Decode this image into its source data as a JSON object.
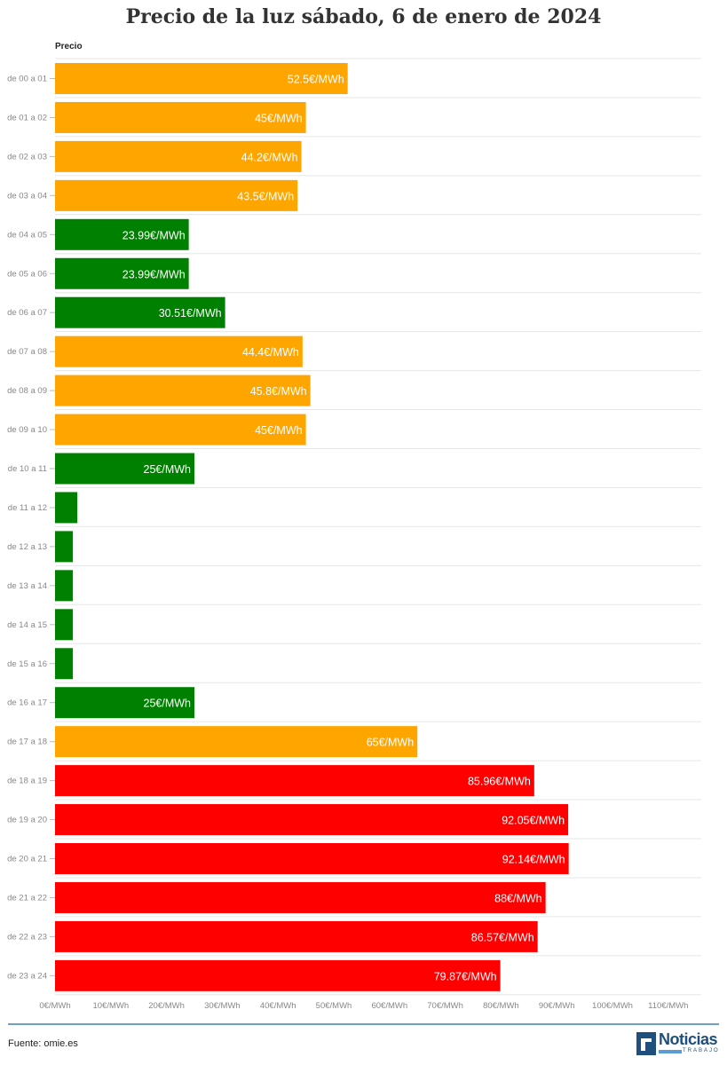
{
  "title": "Precio de la luz sábado, 6 de enero de 2024",
  "footer": {
    "source": "Fuente: omie.es",
    "logo_text": "Noticias",
    "logo_subtext": "TRABAJO"
  },
  "colors": {
    "orange": "#ffa500",
    "green": "#008000",
    "red": "#ff0000",
    "footer_line": "#6f9ec9",
    "logo": "#1f4f7f"
  },
  "chart_data": {
    "type": "bar",
    "orientation": "horizontal",
    "title": "Precio de la luz sábado, 6 de enero de 2024",
    "series_name": "Precio",
    "unit": "€/MWh",
    "xlim": [
      0,
      110
    ],
    "x_ticks": [
      "0€/MWh",
      "10€/MWh",
      "20€/MWh",
      "30€/MWh",
      "40€/MWh",
      "50€/MWh",
      "60€/MWh",
      "70€/MWh",
      "80€/MWh",
      "90€/MWh",
      "100€/MWh",
      "110€/MWh"
    ],
    "grid": true,
    "categories": [
      "de 00 a 01",
      "de 01 a 02",
      "de 02 a 03",
      "de 03 a 04",
      "de 04 a 05",
      "de 05 a 06",
      "de 06 a 07",
      "de 07 a 08",
      "de 08 a 09",
      "de 09 a 10",
      "de 10 a 11",
      "de 11 a 12",
      "de 12 a 13",
      "de 13 a 14",
      "de 14 a 15",
      "de 15 a 16",
      "de 16 a 17",
      "de 17 a 18",
      "de 18 a 19",
      "de 19 a 20",
      "de 20 a 21",
      "de 21 a 22",
      "de 22 a 23",
      "de 23 a 24"
    ],
    "values": [
      52.5,
      45,
      44.2,
      43.5,
      23.99,
      23.99,
      30.51,
      44.4,
      45.8,
      45,
      25,
      4,
      3.2,
      3.2,
      3.2,
      3.2,
      25,
      65,
      85.96,
      92.05,
      92.14,
      88,
      86.57,
      79.87
    ],
    "labels": [
      "52.5€/MWh",
      "45€/MWh",
      "44.2€/MWh",
      "43.5€/MWh",
      "23.99€/MWh",
      "23.99€/MWh",
      "30.51€/MWh",
      "44.4€/MWh",
      "45.8€/MWh",
      "45€/MWh",
      "25€/MWh",
      "",
      "",
      "",
      "",
      "",
      "25€/MWh",
      "65€/MWh",
      "85.96€/MWh",
      "92.05€/MWh",
      "92.14€/MWh",
      "88€/MWh",
      "86.57€/MWh",
      "79.87€/MWh"
    ],
    "bar_colors": [
      "orange",
      "orange",
      "orange",
      "orange",
      "green",
      "green",
      "green",
      "orange",
      "orange",
      "orange",
      "green",
      "green",
      "green",
      "green",
      "green",
      "green",
      "green",
      "orange",
      "red",
      "red",
      "red",
      "red",
      "red",
      "red"
    ]
  }
}
